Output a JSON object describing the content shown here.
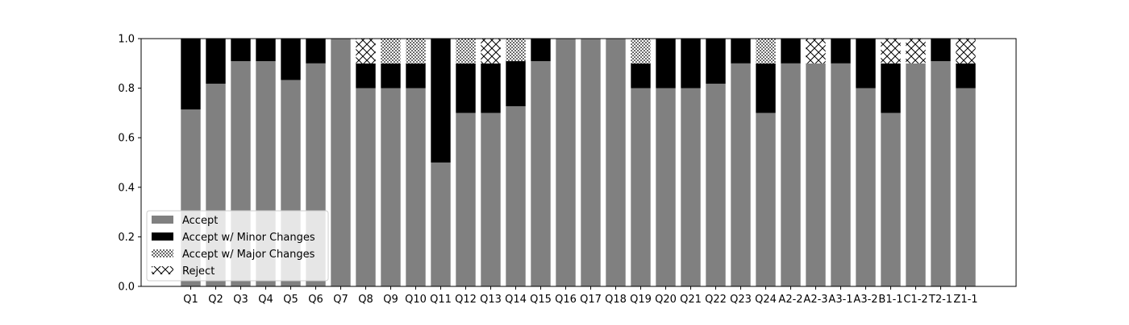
{
  "chart_data": {
    "type": "bar",
    "stacked": true,
    "title": "",
    "xlabel": "",
    "ylabel": "",
    "ylim": [
      0.0,
      1.0
    ],
    "yticks": [
      0.0,
      0.2,
      0.4,
      0.6,
      0.8,
      1.0
    ],
    "ytick_labels": [
      "0.0",
      "0.2",
      "0.4",
      "0.6",
      "0.8",
      "1.0"
    ],
    "grid": false,
    "legend_position": "lower-left",
    "categories": [
      "Q1",
      "Q2",
      "Q3",
      "Q4",
      "Q5",
      "Q6",
      "Q7",
      "Q8",
      "Q9",
      "Q10",
      "Q11",
      "Q12",
      "Q13",
      "Q14",
      "Q15",
      "Q16",
      "Q17",
      "Q18",
      "Q19",
      "Q20",
      "Q21",
      "Q22",
      "Q23",
      "Q24",
      "A2-2",
      "A2-3",
      "A3-1",
      "A3-2",
      "B1-1",
      "C1-2",
      "T2-1",
      "Z1-1"
    ],
    "series": [
      {
        "name": "Accept",
        "color": "#808080",
        "pattern": "solid",
        "values": [
          0.714,
          0.818,
          0.909,
          0.909,
          0.833,
          0.9,
          1.0,
          0.8,
          0.8,
          0.8,
          0.5,
          0.7,
          0.7,
          0.727,
          0.909,
          1.0,
          1.0,
          1.0,
          0.8,
          0.8,
          0.8,
          0.818,
          0.9,
          0.7,
          0.9,
          0.9,
          0.9,
          0.8,
          0.7,
          0.9,
          0.909,
          0.8
        ]
      },
      {
        "name": "Accept w/ Minor Changes",
        "color": "#000000",
        "pattern": "solid",
        "values": [
          0.286,
          0.182,
          0.091,
          0.091,
          0.167,
          0.1,
          0.0,
          0.1,
          0.1,
          0.1,
          0.5,
          0.2,
          0.2,
          0.182,
          0.091,
          0.0,
          0.0,
          0.0,
          0.1,
          0.2,
          0.2,
          0.182,
          0.1,
          0.2,
          0.1,
          0.0,
          0.1,
          0.2,
          0.2,
          0.0,
          0.091,
          0.1
        ]
      },
      {
        "name": "Accept w/ Major Changes",
        "color": "#ffffff",
        "pattern": "dots",
        "values": [
          0.0,
          0.0,
          0.0,
          0.0,
          0.0,
          0.0,
          0.0,
          0.0,
          0.1,
          0.1,
          0.0,
          0.1,
          0.0,
          0.091,
          0.0,
          0.0,
          0.0,
          0.0,
          0.1,
          0.0,
          0.0,
          0.0,
          0.0,
          0.1,
          0.0,
          0.0,
          0.0,
          0.0,
          0.0,
          0.0,
          0.0,
          0.0
        ]
      },
      {
        "name": "Reject",
        "color": "#ffffff",
        "pattern": "crosshatch",
        "values": [
          0.0,
          0.0,
          0.0,
          0.0,
          0.0,
          0.0,
          0.0,
          0.1,
          0.0,
          0.0,
          0.0,
          0.0,
          0.1,
          0.0,
          0.0,
          0.0,
          0.0,
          0.0,
          0.0,
          0.0,
          0.0,
          0.0,
          0.0,
          0.0,
          0.0,
          0.1,
          0.0,
          0.0,
          0.1,
          0.1,
          0.0,
          0.1
        ]
      }
    ]
  }
}
